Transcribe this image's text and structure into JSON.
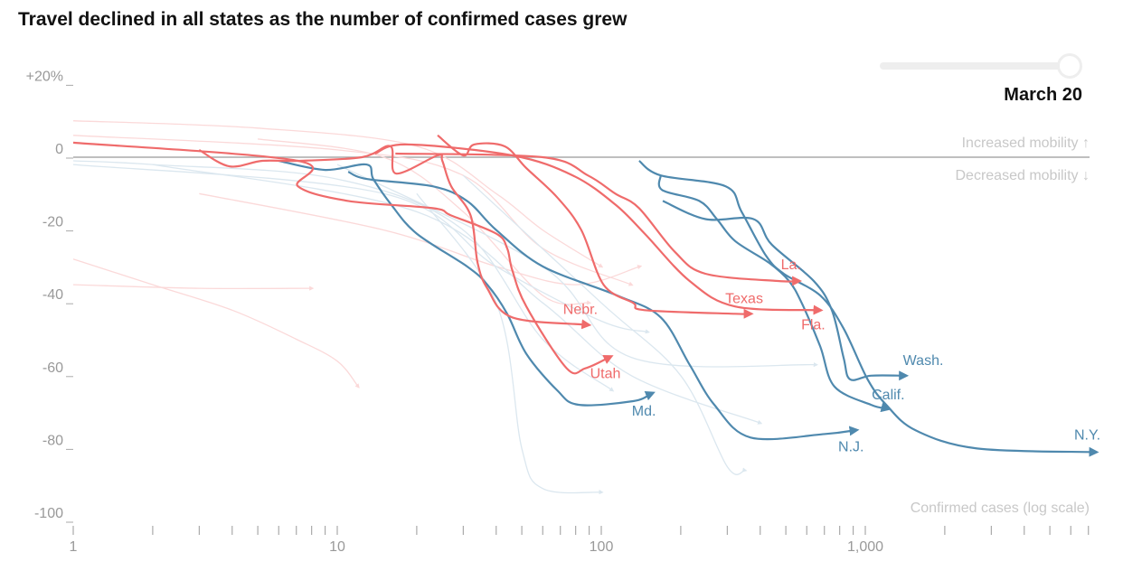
{
  "title": "Travel declined in all states as the number of confirmed cases grew",
  "slider": {
    "date_label": "March 20",
    "position": 1.0
  },
  "colors": {
    "red": "#ef6b6b",
    "blue": "#4f89ae",
    "red_faint": "#fbd9d9",
    "blue_faint": "#dbe7ef",
    "zero_line": "#aaaaaa",
    "axis": "#999999"
  },
  "chart_data": {
    "type": "line",
    "title": "Travel declined in all states as the number of confirmed cases grew",
    "xlabel": "Confirmed cases (log scale)",
    "ylabel": "",
    "xscale": "log",
    "xlim": [
      1,
      7000
    ],
    "ylim": [
      -100,
      20
    ],
    "x_tick_labels": [
      "1",
      "10",
      "100",
      "1,000"
    ],
    "x_tick_values": [
      1,
      10,
      100,
      1000
    ],
    "y_tick_labels": [
      "+20%",
      "0",
      "-20",
      "-40",
      "-60",
      "-80",
      "-100"
    ],
    "y_tick_values": [
      20,
      0,
      -20,
      -40,
      -60,
      -80,
      -100
    ],
    "annotations": {
      "above_zero": "Increased mobility ↑",
      "below_zero": "Decreased mobility ↓"
    },
    "grid": false,
    "series": [
      {
        "name": "N.Y.",
        "color": "blue",
        "points": [
          [
            139,
            -1
          ],
          [
            168,
            -5
          ],
          [
            296,
            -8
          ],
          [
            340,
            -15
          ],
          [
            420,
            -27
          ],
          [
            491,
            -32
          ],
          [
            675,
            -38
          ],
          [
            827,
            -47
          ],
          [
            1020,
            -61
          ],
          [
            1200,
            -68
          ],
          [
            1550,
            -75
          ],
          [
            2650,
            -80
          ],
          [
            7350,
            -81
          ]
        ]
      },
      {
        "name": "Calif.",
        "color": "blue",
        "points": [
          [
            168,
            -5
          ],
          [
            170,
            -9
          ],
          [
            235,
            -12
          ],
          [
            274,
            -17
          ],
          [
            321,
            -23
          ],
          [
            432,
            -29
          ],
          [
            514,
            -34
          ],
          [
            574,
            -40
          ],
          [
            675,
            -52
          ],
          [
            764,
            -63
          ],
          [
            1050,
            -68
          ],
          [
            1200,
            -69
          ]
        ]
      },
      {
        "name": "Wash.",
        "color": "blue",
        "points": [
          [
            171,
            -12
          ],
          [
            248,
            -17
          ],
          [
            377,
            -17
          ],
          [
            442,
            -24
          ],
          [
            638,
            -34
          ],
          [
            747,
            -42
          ],
          [
            827,
            -55
          ],
          [
            875,
            -61
          ],
          [
            1050,
            -60
          ],
          [
            1400,
            -60
          ]
        ]
      },
      {
        "name": "N.J.",
        "color": "blue",
        "points": [
          [
            11,
            -4
          ],
          [
            13,
            -6
          ],
          [
            23,
            -8
          ],
          [
            31,
            -12
          ],
          [
            40,
            -20
          ],
          [
            60,
            -30
          ],
          [
            115,
            -38
          ],
          [
            168,
            -44
          ],
          [
            216,
            -57
          ],
          [
            268,
            -68
          ],
          [
            368,
            -77
          ],
          [
            707,
            -76
          ],
          [
            910,
            -75
          ]
        ]
      },
      {
        "name": "Md.",
        "color": "blue",
        "points": [
          [
            6,
            -1
          ],
          [
            9,
            -3.5
          ],
          [
            12.9,
            -2
          ],
          [
            13.7,
            -6
          ],
          [
            16,
            -13
          ],
          [
            20,
            -21
          ],
          [
            31,
            -30
          ],
          [
            37,
            -35
          ],
          [
            44,
            -43
          ],
          [
            52,
            -54
          ],
          [
            68,
            -64
          ],
          [
            82,
            -68
          ],
          [
            132,
            -67
          ],
          [
            154,
            -65
          ]
        ]
      },
      {
        "name": "Utah",
        "color": "red",
        "points": [
          [
            1,
            4
          ],
          [
            7.1,
            -1
          ],
          [
            7.1,
            -8
          ],
          [
            11,
            -12
          ],
          [
            23,
            -14
          ],
          [
            27,
            -16
          ],
          [
            40,
            -21
          ],
          [
            44,
            -25
          ],
          [
            46,
            -31
          ],
          [
            52,
            -41
          ],
          [
            74,
            -58
          ],
          [
            87,
            -58
          ],
          [
            107,
            -55
          ]
        ]
      },
      {
        "name": "Nebr.",
        "color": "red",
        "points": [
          [
            3,
            2
          ],
          [
            3.9,
            -2.5
          ],
          [
            5.2,
            -1
          ],
          [
            7.1,
            -1
          ],
          [
            12.4,
            0
          ],
          [
            15.9,
            3
          ],
          [
            16.7,
            -4.5
          ],
          [
            24,
            0.5
          ],
          [
            25,
            -1
          ],
          [
            27,
            -8
          ],
          [
            32,
            -16
          ],
          [
            34,
            -29
          ],
          [
            37,
            -36
          ],
          [
            46,
            -44
          ],
          [
            88,
            -46
          ]
        ]
      },
      {
        "name": "Texas",
        "color": "red",
        "points": [
          [
            24,
            6
          ],
          [
            30,
            0.5
          ],
          [
            33,
            3.5
          ],
          [
            43,
            3
          ],
          [
            52,
            -3
          ],
          [
            68,
            -11
          ],
          [
            84,
            -20
          ],
          [
            102,
            -35
          ],
          [
            132,
            -40
          ],
          [
            146,
            -42
          ],
          [
            321,
            -43
          ],
          [
            362,
            -43
          ]
        ]
      },
      {
        "name": "Fla.",
        "color": "red",
        "points": [
          [
            13.9,
            1
          ],
          [
            18.3,
            3.5
          ],
          [
            46,
            0.5
          ],
          [
            78,
            -5
          ],
          [
            113,
            -13
          ],
          [
            146,
            -21
          ],
          [
            216,
            -34
          ],
          [
            321,
            -41
          ],
          [
            664,
            -42
          ]
        ]
      },
      {
        "name": "La.",
        "color": "red",
        "points": [
          [
            16.6,
            1
          ],
          [
            60,
            0
          ],
          [
            89,
            -5
          ],
          [
            113,
            -10
          ],
          [
            139,
            -14
          ],
          [
            190,
            -26
          ],
          [
            248,
            -32
          ],
          [
            467,
            -34
          ],
          [
            552,
            -34
          ]
        ]
      }
    ],
    "background_series": [
      {
        "color": "red_faint",
        "points": [
          [
            1,
            10
          ],
          [
            5,
            8
          ],
          [
            20,
            3
          ],
          [
            40,
            -10
          ],
          [
            60,
            -20
          ],
          [
            100,
            -30
          ]
        ]
      },
      {
        "color": "red_faint",
        "points": [
          [
            1,
            -28
          ],
          [
            2,
            -35
          ],
          [
            4,
            -42
          ],
          [
            7,
            -50
          ],
          [
            10,
            -56
          ],
          [
            12,
            -63
          ]
        ]
      },
      {
        "color": "red_faint",
        "points": [
          [
            1,
            -35
          ],
          [
            3,
            -36
          ],
          [
            8,
            -36
          ]
        ]
      },
      {
        "color": "red_faint",
        "points": [
          [
            1,
            6
          ],
          [
            10,
            2
          ],
          [
            30,
            -5
          ],
          [
            60,
            -25
          ],
          [
            130,
            -35
          ]
        ]
      },
      {
        "color": "red_faint",
        "points": [
          [
            3,
            -10
          ],
          [
            15,
            -20
          ],
          [
            40,
            -30
          ],
          [
            80,
            -35
          ],
          [
            140,
            -30
          ]
        ]
      },
      {
        "color": "red_faint",
        "points": [
          [
            5,
            5
          ],
          [
            15,
            0
          ],
          [
            30,
            -15
          ],
          [
            60,
            -38
          ],
          [
            90,
            -40
          ]
        ]
      },
      {
        "color": "blue_faint",
        "points": [
          [
            1,
            -1
          ],
          [
            2,
            -2
          ],
          [
            10,
            -6
          ],
          [
            30,
            -20
          ],
          [
            60,
            -50
          ],
          [
            110,
            -64
          ]
        ]
      },
      {
        "color": "blue_faint",
        "points": [
          [
            20,
            -10
          ],
          [
            40,
            -40
          ],
          [
            50,
            -80
          ],
          [
            60,
            -91
          ],
          [
            100,
            -92
          ]
        ]
      },
      {
        "color": "blue_faint",
        "points": [
          [
            2,
            -2
          ],
          [
            20,
            -15
          ],
          [
            60,
            -40
          ],
          [
            130,
            -60
          ],
          [
            400,
            -73
          ]
        ]
      },
      {
        "color": "blue_faint",
        "points": [
          [
            30,
            -5
          ],
          [
            100,
            -40
          ],
          [
            200,
            -60
          ],
          [
            300,
            -85
          ],
          [
            350,
            -86
          ]
        ]
      },
      {
        "color": "blue_faint",
        "points": [
          [
            10,
            -2
          ],
          [
            60,
            -30
          ],
          [
            130,
            -55
          ],
          [
            650,
            -57
          ]
        ]
      },
      {
        "color": "blue_faint",
        "points": [
          [
            1,
            -2
          ],
          [
            15,
            -10
          ],
          [
            40,
            -30
          ],
          [
            100,
            -45
          ],
          [
            150,
            -48
          ]
        ]
      }
    ]
  }
}
